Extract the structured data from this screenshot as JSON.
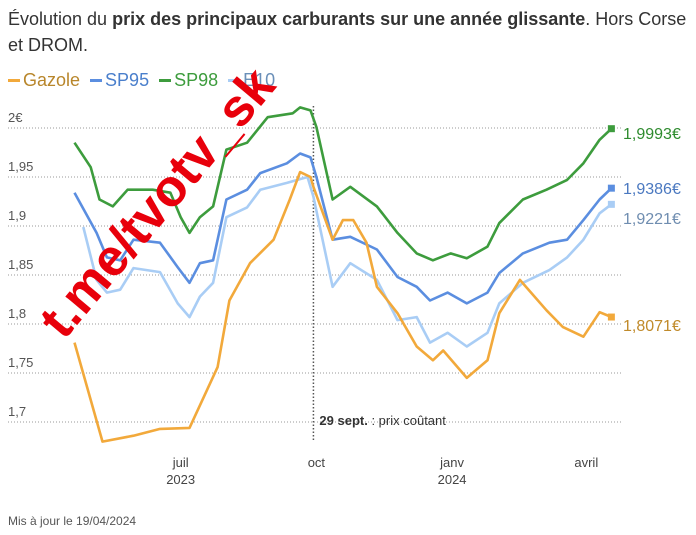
{
  "title": {
    "prefix": "Évolution du ",
    "bold": "prix des principaux carburants sur une année glissante",
    "suffix": ". Hors Corse et DROM."
  },
  "footer": "Mis à jour le 19/04/2024",
  "watermark": "t.me/tvotv_sk",
  "chart_data": {
    "type": "line",
    "title": "Évolution du prix des principaux carburants sur une année glissante. Hors Corse et DROM.",
    "x_unit": "days since 19/04/2023",
    "xlim": [
      0,
      366
    ],
    "ylim": [
      1.67,
      2.02
    ],
    "grid": true,
    "legend_placement": "top-left",
    "yticks": [
      {
        "v": 2.0,
        "label": "2€"
      },
      {
        "v": 1.95,
        "label": "1,95"
      },
      {
        "v": 1.9,
        "label": "1,9"
      },
      {
        "v": 1.85,
        "label": "1,85"
      },
      {
        "v": 1.8,
        "label": "1,8"
      },
      {
        "v": 1.75,
        "label": "1,75"
      },
      {
        "v": 1.7,
        "label": "1,7"
      }
    ],
    "xticks": [
      {
        "d": 73,
        "label": "juil",
        "year": "2023"
      },
      {
        "d": 165,
        "label": "oct",
        "year": ""
      },
      {
        "d": 257,
        "label": "janv",
        "year": "2024"
      },
      {
        "d": 348,
        "label": "avril",
        "year": ""
      }
    ],
    "annotation": {
      "d": 163,
      "bold": "29 sept.",
      "text": " : prix coûtant"
    },
    "series": [
      {
        "name": "Gazole",
        "color": "#f2a93b",
        "legend_color": "#b8862b",
        "label_color": "#c08a2a",
        "last_label": "1,8071€",
        "points": [
          [
            1,
            1.781
          ],
          [
            20,
            1.68
          ],
          [
            41,
            1.686
          ],
          [
            59,
            1.693
          ],
          [
            79,
            1.694
          ],
          [
            98,
            1.756
          ],
          [
            106,
            1.824
          ],
          [
            120,
            1.862
          ],
          [
            136,
            1.886
          ],
          [
            147,
            1.927
          ],
          [
            154,
            1.955
          ],
          [
            161,
            1.95
          ],
          [
            163,
            1.94
          ],
          [
            176,
            1.886
          ],
          [
            183,
            1.906
          ],
          [
            190,
            1.906
          ],
          [
            199,
            1.883
          ],
          [
            206,
            1.838
          ],
          [
            220,
            1.811
          ],
          [
            233,
            1.777
          ],
          [
            244,
            1.763
          ],
          [
            251,
            1.773
          ],
          [
            267,
            1.745
          ],
          [
            281,
            1.763
          ],
          [
            289,
            1.811
          ],
          [
            303,
            1.845
          ],
          [
            321,
            1.814
          ],
          [
            332,
            1.797
          ],
          [
            346,
            1.787
          ],
          [
            357,
            1.812
          ],
          [
            365,
            1.8071
          ]
        ]
      },
      {
        "name": "SP95",
        "color": "#5b8ee0",
        "legend_color": "#4a7fcc",
        "label_color": "#4a78c0",
        "last_label": "1,9386€",
        "points": [
          [
            1,
            1.934
          ],
          [
            16,
            1.893
          ],
          [
            23,
            1.868
          ],
          [
            32,
            1.865
          ],
          [
            41,
            1.886
          ],
          [
            59,
            1.883
          ],
          [
            71,
            1.858
          ],
          [
            79,
            1.842
          ],
          [
            86,
            1.862
          ],
          [
            95,
            1.865
          ],
          [
            104,
            1.927
          ],
          [
            118,
            1.937
          ],
          [
            127,
            1.954
          ],
          [
            145,
            1.964
          ],
          [
            154,
            1.974
          ],
          [
            161,
            1.97
          ],
          [
            165,
            1.95
          ],
          [
            176,
            1.886
          ],
          [
            188,
            1.889
          ],
          [
            206,
            1.876
          ],
          [
            220,
            1.848
          ],
          [
            233,
            1.838
          ],
          [
            242,
            1.824
          ],
          [
            254,
            1.832
          ],
          [
            267,
            1.821
          ],
          [
            281,
            1.832
          ],
          [
            289,
            1.852
          ],
          [
            305,
            1.872
          ],
          [
            323,
            1.883
          ],
          [
            335,
            1.886
          ],
          [
            346,
            1.906
          ],
          [
            357,
            1.927
          ],
          [
            365,
            1.9386
          ]
        ]
      },
      {
        "name": "SP98",
        "color": "#3d9c3d",
        "legend_color": "#3d9c3d",
        "label_color": "#2e8b2e",
        "last_label": "1,9993€",
        "points": [
          [
            1,
            1.985
          ],
          [
            12,
            1.96
          ],
          [
            18,
            1.927
          ],
          [
            27,
            1.92
          ],
          [
            37,
            1.937
          ],
          [
            54,
            1.937
          ],
          [
            66,
            1.934
          ],
          [
            73,
            1.909
          ],
          [
            79,
            1.893
          ],
          [
            86,
            1.909
          ],
          [
            95,
            1.92
          ],
          [
            104,
            1.978
          ],
          [
            118,
            1.985
          ],
          [
            132,
            2.011
          ],
          [
            149,
            2.015
          ],
          [
            154,
            2.021
          ],
          [
            161,
            2.018
          ],
          [
            165,
            2.001
          ],
          [
            176,
            1.927
          ],
          [
            188,
            1.94
          ],
          [
            206,
            1.92
          ],
          [
            220,
            1.893
          ],
          [
            233,
            1.872
          ],
          [
            244,
            1.865
          ],
          [
            256,
            1.872
          ],
          [
            267,
            1.867
          ],
          [
            281,
            1.879
          ],
          [
            289,
            1.903
          ],
          [
            305,
            1.927
          ],
          [
            321,
            1.937
          ],
          [
            335,
            1.947
          ],
          [
            346,
            1.964
          ],
          [
            357,
            1.988
          ],
          [
            365,
            1.9993
          ]
        ]
      },
      {
        "name": "E10",
        "color": "#a9cdf5",
        "legend_color": "#6a8fb8",
        "label_color": "#6f8db0",
        "last_label": "1,9221€",
        "points": [
          [
            7,
            1.899
          ],
          [
            16,
            1.845
          ],
          [
            23,
            1.832
          ],
          [
            32,
            1.835
          ],
          [
            41,
            1.857
          ],
          [
            59,
            1.853
          ],
          [
            71,
            1.821
          ],
          [
            79,
            1.807
          ],
          [
            86,
            1.828
          ],
          [
            95,
            1.842
          ],
          [
            104,
            1.909
          ],
          [
            118,
            1.919
          ],
          [
            127,
            1.937
          ],
          [
            145,
            1.944
          ],
          [
            159,
            1.95
          ],
          [
            163,
            1.93
          ],
          [
            176,
            1.838
          ],
          [
            188,
            1.862
          ],
          [
            206,
            1.845
          ],
          [
            220,
            1.804
          ],
          [
            233,
            1.807
          ],
          [
            242,
            1.781
          ],
          [
            254,
            1.791
          ],
          [
            267,
            1.777
          ],
          [
            281,
            1.791
          ],
          [
            289,
            1.821
          ],
          [
            305,
            1.842
          ],
          [
            323,
            1.855
          ],
          [
            335,
            1.868
          ],
          [
            346,
            1.886
          ],
          [
            357,
            1.913
          ],
          [
            365,
            1.9221
          ]
        ]
      }
    ]
  }
}
